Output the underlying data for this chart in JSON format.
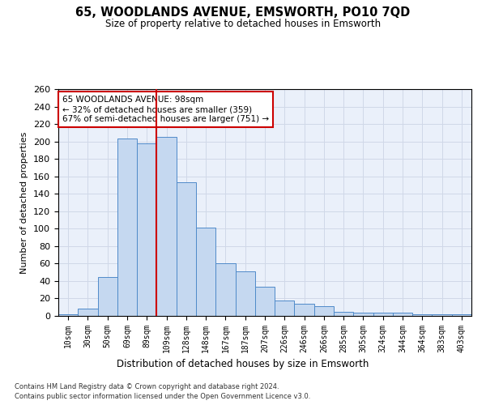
{
  "title": "65, WOODLANDS AVENUE, EMSWORTH, PO10 7QD",
  "subtitle": "Size of property relative to detached houses in Emsworth",
  "xlabel": "Distribution of detached houses by size in Emsworth",
  "ylabel": "Number of detached properties",
  "categories": [
    "10sqm",
    "30sqm",
    "50sqm",
    "69sqm",
    "89sqm",
    "109sqm",
    "128sqm",
    "148sqm",
    "167sqm",
    "187sqm",
    "207sqm",
    "226sqm",
    "246sqm",
    "266sqm",
    "285sqm",
    "305sqm",
    "324sqm",
    "344sqm",
    "364sqm",
    "383sqm",
    "403sqm"
  ],
  "values": [
    2,
    8,
    45,
    203,
    198,
    205,
    153,
    101,
    60,
    51,
    33,
    18,
    14,
    11,
    5,
    4,
    4,
    4,
    2,
    2,
    2
  ],
  "bar_color": "#c5d8f0",
  "bar_edge_color": "#4f8ac9",
  "vline_x_index": 4.5,
  "vline_color": "#cc0000",
  "annotation_text": "65 WOODLANDS AVENUE: 98sqm\n← 32% of detached houses are smaller (359)\n67% of semi-detached houses are larger (751) →",
  "annotation_box_color": "#ffffff",
  "annotation_box_edge": "#cc0000",
  "ylim": [
    0,
    260
  ],
  "yticks": [
    0,
    20,
    40,
    60,
    80,
    100,
    120,
    140,
    160,
    180,
    200,
    220,
    240,
    260
  ],
  "grid_color": "#d0d8e8",
  "bg_color": "#eaf0fa",
  "footer1": "Contains HM Land Registry data © Crown copyright and database right 2024.",
  "footer2": "Contains public sector information licensed under the Open Government Licence v3.0."
}
